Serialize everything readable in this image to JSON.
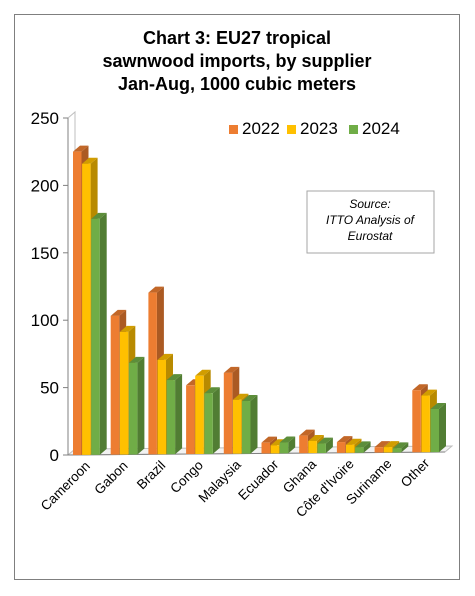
{
  "chart_data": {
    "type": "bar",
    "title_lines": [
      "Chart 3: EU27 tropical",
      "sawnwood imports, by supplier",
      "Jan-Aug, 1000 cubic meters"
    ],
    "categories": [
      "Cameroon",
      "Gabon",
      "Brazil",
      "Congo",
      "Malaysia",
      "Ecuador",
      "Ghana",
      "Côte d'Ivoire",
      "Suriname",
      "Other"
    ],
    "series": [
      {
        "name": "2022",
        "color": "#ed7d31",
        "values": [
          225,
          103,
          120,
          51,
          60,
          8,
          13,
          8,
          4,
          46
        ]
      },
      {
        "name": "2023",
        "color": "#ffc000",
        "values": [
          216,
          91,
          70,
          58,
          40,
          6,
          9,
          6,
          4,
          42
        ]
      },
      {
        "name": "2024",
        "color": "#70ad47",
        "values": [
          175,
          68,
          55,
          45,
          39,
          8,
          7,
          4,
          3,
          32
        ]
      }
    ],
    "yticks": [
      "0",
      "50",
      "100",
      "150",
      "200",
      "250"
    ],
    "ylim": [
      0,
      250
    ],
    "legend_position": "top-right",
    "grid": false,
    "annotation": [
      "Source:",
      "ITTO Analysis of",
      "Eurostat"
    ]
  }
}
